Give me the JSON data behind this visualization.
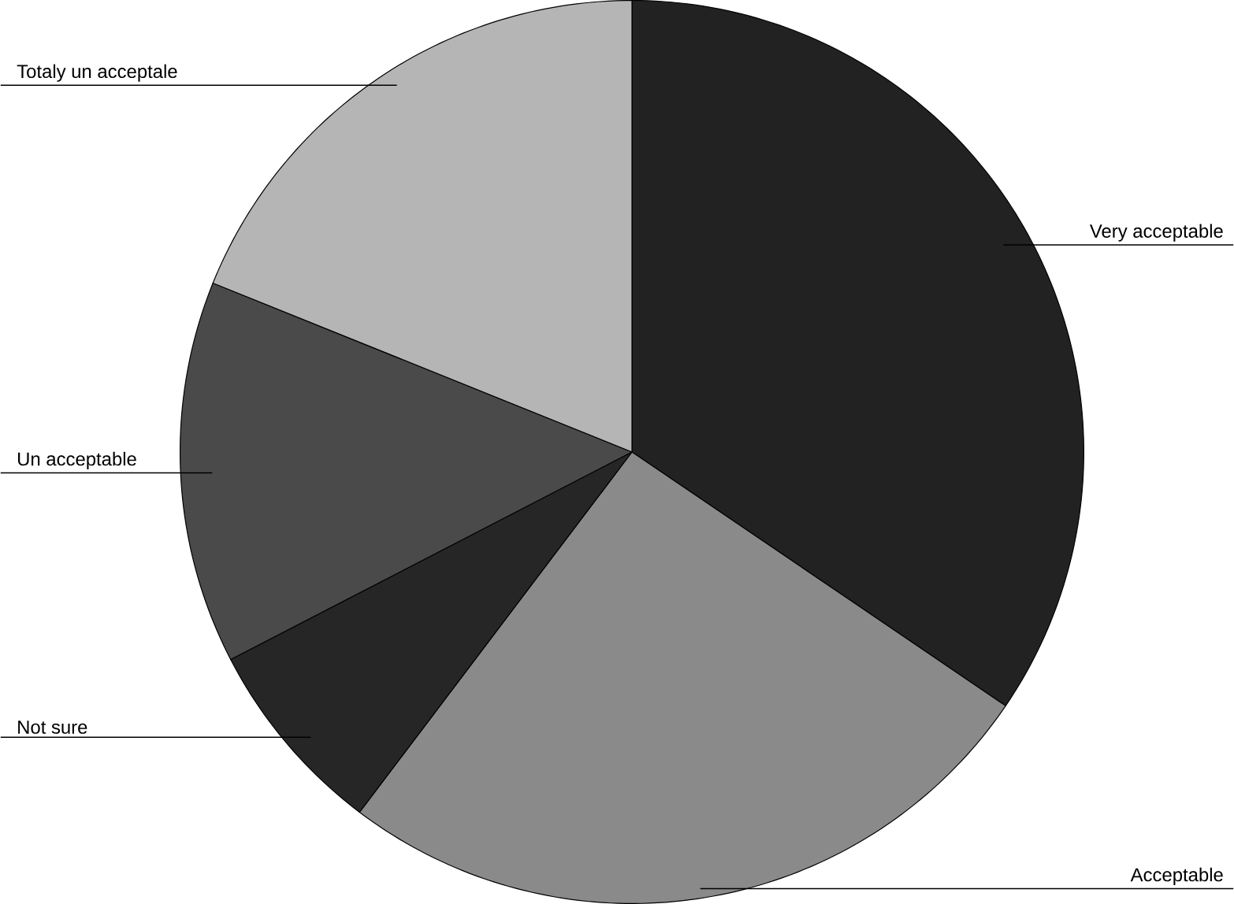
{
  "chart_data": {
    "type": "pie",
    "categories": [
      "Very acceptable",
      "Acceptable",
      "Not sure",
      "Un acceptable",
      "Totaly un acceptale"
    ],
    "values": [
      34.5,
      25.8,
      7.1,
      13.7,
      18.9
    ],
    "colors": [
      "#222222",
      "#8a8a8a",
      "#262626",
      "#4a4a4a",
      "#b5b5b5"
    ]
  }
}
